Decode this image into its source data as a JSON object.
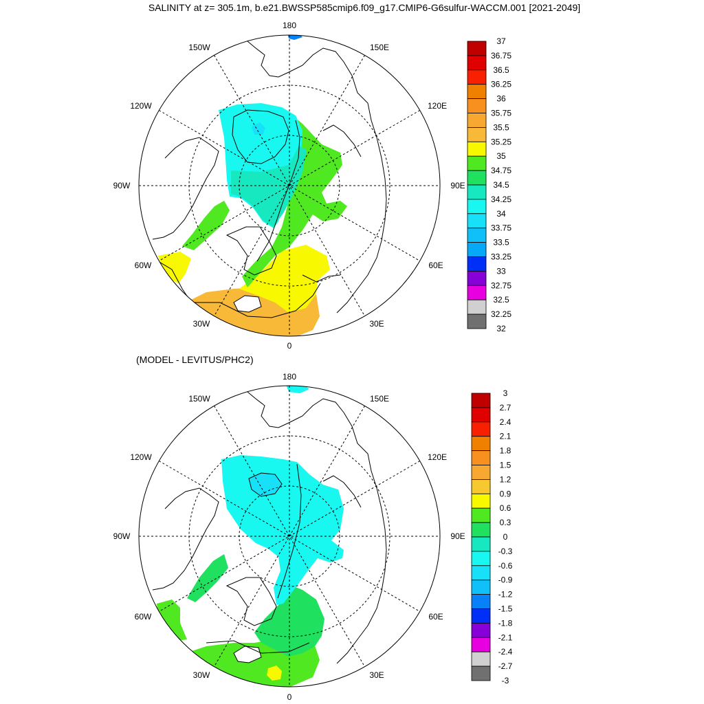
{
  "title": "SALINITY at z= 305.1m, b.e21.BWSSP585cmip6.f09_g17.CMIP6-G6sulfur-WACCM.001 [2021-2049]",
  "subtitle": "(MODEL - LEVITUS/PHC2)",
  "longitude_labels": {
    "lon_180": "180",
    "lon_150E": "150E",
    "lon_120E": "120E",
    "lon_90E": "90E",
    "lon_60E": "60E",
    "lon_30E": "30E",
    "lon_0": "0",
    "lon_30W": "30W",
    "lon_60W": "60W",
    "lon_90W": "90W",
    "lon_120W": "120W",
    "lon_150W": "150W"
  },
  "colorbar_top": {
    "labels": [
      "37",
      "36.75",
      "36.5",
      "36.25",
      "36",
      "35.75",
      "35.5",
      "35.25",
      "35",
      "34.75",
      "34.5",
      "34.25",
      "34",
      "33.75",
      "33.5",
      "33.25",
      "33",
      "32.75",
      "32.5",
      "32.25",
      "32"
    ],
    "colors": [
      "#c00000",
      "#e00000",
      "#f82000",
      "#f08000",
      "#f89020",
      "#f8a830",
      "#f8b838",
      "#f8f800",
      "#50e820",
      "#20e060",
      "#18e8c0",
      "#18f8f0",
      "#18e0f8",
      "#10c0f8",
      "#08a8f8",
      "#0030f8",
      "#8800d8",
      "#e800e0",
      "#d0d0d0",
      "#707070"
    ]
  },
  "colorbar_bottom": {
    "labels": [
      "3",
      "2.7",
      "2.4",
      "2.1",
      "1.8",
      "1.5",
      "1.2",
      "0.9",
      "0.6",
      "0.3",
      "0",
      "-0.3",
      "-0.6",
      "-0.9",
      "-1.2",
      "-1.5",
      "-1.8",
      "-2.1",
      "-2.4",
      "-2.7",
      "-3"
    ],
    "colors": [
      "#c00000",
      "#e00000",
      "#f82000",
      "#f08000",
      "#f89020",
      "#f8a830",
      "#f8c830",
      "#f8f800",
      "#50e820",
      "#20e060",
      "#18e8c0",
      "#18f8f0",
      "#18e0f8",
      "#10c0f8",
      "#0880f8",
      "#0030f8",
      "#8800d8",
      "#e800e0",
      "#d0d0d0",
      "#707070"
    ]
  },
  "field_colors": {
    "cyan": "#18f8f0",
    "teal": "#18e8c0",
    "green": "#50e820",
    "yellow": "#f8f800",
    "orange": "#f8b838",
    "blue_low": "#0880f8",
    "light_blue": "#18e0f8"
  }
}
